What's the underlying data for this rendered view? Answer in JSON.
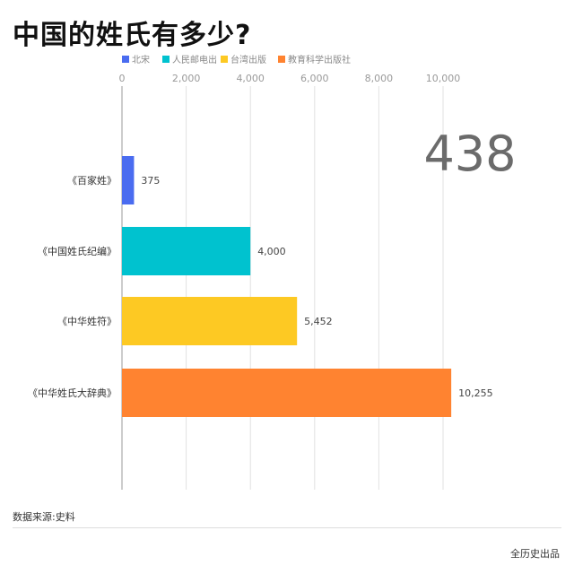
{
  "title": "中国的姓氏有多少?",
  "legend": [
    {
      "label": "北宋",
      "color": "#4a6cf0"
    },
    {
      "label": "人民邮电出",
      "color": "#00c2cf"
    },
    {
      "label": "台湾出版",
      "color": "#fdc923"
    },
    {
      "label": "教育科学出版社",
      "color": "#ff8330"
    }
  ],
  "big_number": "438",
  "source": "数据来源:史料",
  "brand": "全历史出品",
  "chart_data": {
    "type": "bar",
    "orientation": "horizontal",
    "categories": [
      "《百家姓》",
      "《中国姓氏纪编》",
      "《中华姓符》",
      "《中华姓氏大辞典》"
    ],
    "values": [
      375,
      4000,
      5452,
      10255
    ],
    "value_labels": [
      "375",
      "4,000",
      "5,452",
      "10,255"
    ],
    "colors": [
      "#4a6cf0",
      "#00c2cf",
      "#fdc923",
      "#ff8330"
    ],
    "xlim": [
      0,
      10000
    ],
    "x_ticks": [
      0,
      2000,
      4000,
      6000,
      8000,
      10000
    ],
    "x_tick_labels": [
      "0",
      "2,000",
      "4,000",
      "6,000",
      "8,000",
      "10,000"
    ],
    "grid": true,
    "legend_position": "top",
    "annotation": "438"
  }
}
